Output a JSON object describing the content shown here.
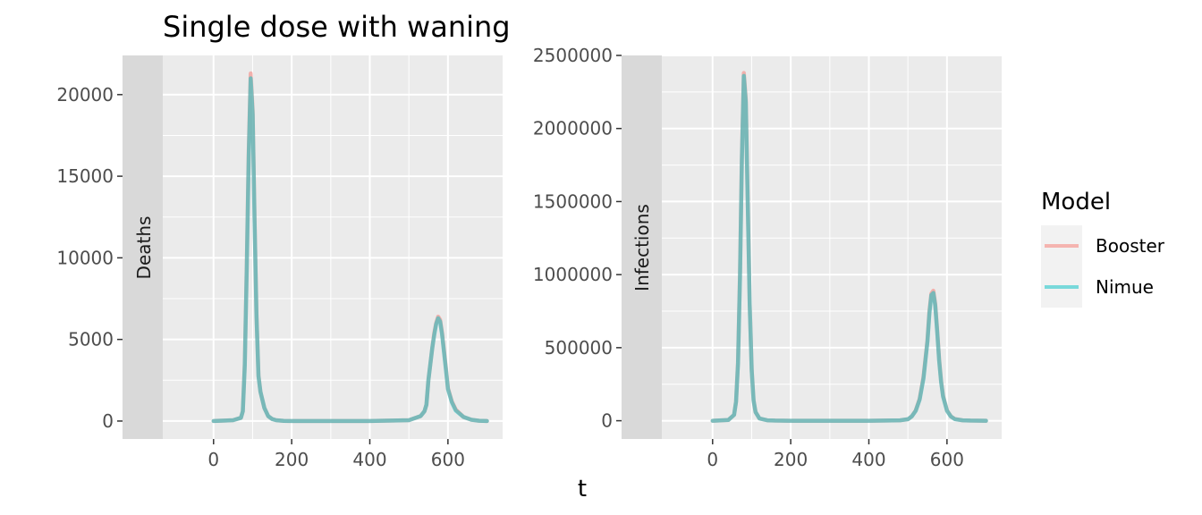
{
  "title": "Single dose with waning",
  "xlabel": "t",
  "legend": {
    "title": "Model",
    "placement": "right",
    "items": [
      {
        "label": "Booster",
        "color": "#F8766D"
      },
      {
        "label": "Nimue",
        "color": "#00BFC4"
      }
    ]
  },
  "chart_data": [
    {
      "type": "line",
      "panel": "Deaths",
      "strip_label": "Deaths",
      "xlim": [
        -130,
        740
      ],
      "ylim": [
        -1100,
        22400
      ],
      "x_ticks": [
        0,
        200,
        400,
        600
      ],
      "y_ticks": [
        0,
        5000,
        10000,
        15000,
        20000
      ],
      "x_tick_labels": [
        "0",
        "200",
        "400",
        "600"
      ],
      "y_tick_labels": [
        "0",
        "5000",
        "10000",
        "15000",
        "20000"
      ],
      "series": [
        {
          "name": "Booster",
          "color": "#F8766D",
          "x": [
            0,
            50,
            70,
            75,
            80,
            85,
            90,
            95,
            100,
            105,
            110,
            115,
            120,
            130,
            140,
            150,
            160,
            180,
            200,
            300,
            400,
            500,
            530,
            540,
            545,
            550,
            555,
            560,
            565,
            570,
            575,
            580,
            585,
            590,
            595,
            600,
            610,
            620,
            640,
            660,
            680,
            700
          ],
          "y": [
            0,
            50,
            200,
            600,
            3500,
            9500,
            16500,
            21300,
            19000,
            12500,
            6500,
            2800,
            1800,
            800,
            300,
            120,
            50,
            10,
            0,
            0,
            0,
            50,
            300,
            600,
            1000,
            2500,
            3500,
            4500,
            5400,
            6000,
            6400,
            6200,
            5400,
            4300,
            3200,
            2000,
            1200,
            700,
            250,
            80,
            20,
            0
          ]
        },
        {
          "name": "Nimue",
          "color": "#00BFC4",
          "x": [
            0,
            50,
            70,
            75,
            80,
            85,
            90,
            95,
            100,
            105,
            110,
            115,
            120,
            130,
            140,
            150,
            160,
            180,
            200,
            300,
            400,
            500,
            530,
            540,
            545,
            550,
            555,
            560,
            565,
            570,
            575,
            580,
            585,
            590,
            595,
            600,
            610,
            620,
            640,
            660,
            680,
            700
          ],
          "y": [
            0,
            50,
            200,
            600,
            3400,
            9300,
            16200,
            21000,
            18800,
            12300,
            6400,
            2750,
            1800,
            800,
            300,
            120,
            50,
            10,
            0,
            0,
            0,
            50,
            300,
            600,
            1000,
            2500,
            3500,
            4500,
            5300,
            5950,
            6300,
            6100,
            5300,
            4200,
            3100,
            1950,
            1150,
            650,
            250,
            80,
            20,
            0
          ]
        }
      ]
    },
    {
      "type": "line",
      "panel": "Infections",
      "strip_label": "Infections",
      "xlim": [
        -130,
        740
      ],
      "ylim": [
        -125000,
        2500000
      ],
      "x_ticks": [
        0,
        200,
        400,
        600
      ],
      "y_ticks": [
        0,
        500000,
        1000000,
        1500000,
        2000000,
        2500000
      ],
      "x_tick_labels": [
        "0",
        "200",
        "400",
        "600"
      ],
      "y_tick_labels": [
        "0",
        "500000",
        "1000000",
        "1500000",
        "2000000",
        "2500000"
      ],
      "series": [
        {
          "name": "Booster",
          "color": "#F8766D",
          "x": [
            0,
            40,
            55,
            60,
            65,
            70,
            75,
            80,
            85,
            90,
            95,
            100,
            105,
            110,
            120,
            140,
            160,
            200,
            300,
            400,
            480,
            500,
            510,
            520,
            530,
            540,
            550,
            555,
            560,
            565,
            570,
            575,
            580,
            585,
            590,
            600,
            610,
            620,
            640,
            660,
            700
          ],
          "y": [
            0,
            5000,
            40000,
            130000,
            400000,
            1000000,
            1800000,
            2380000,
            2200000,
            1500000,
            800000,
            350000,
            140000,
            60000,
            15000,
            3000,
            1000,
            0,
            0,
            0,
            3000,
            10000,
            30000,
            70000,
            150000,
            300000,
            550000,
            750000,
            870000,
            890000,
            800000,
            620000,
            420000,
            270000,
            170000,
            70000,
            30000,
            12000,
            3000,
            800,
            0
          ]
        },
        {
          "name": "Nimue",
          "color": "#00BFC4",
          "x": [
            0,
            40,
            55,
            60,
            65,
            70,
            75,
            80,
            85,
            90,
            95,
            100,
            105,
            110,
            120,
            140,
            160,
            200,
            300,
            400,
            480,
            500,
            510,
            520,
            530,
            540,
            550,
            555,
            560,
            565,
            570,
            575,
            580,
            585,
            590,
            600,
            610,
            620,
            640,
            660,
            700
          ],
          "y": [
            0,
            5000,
            40000,
            130000,
            390000,
            980000,
            1780000,
            2360000,
            2180000,
            1480000,
            790000,
            345000,
            138000,
            59000,
            15000,
            3000,
            1000,
            0,
            0,
            0,
            3000,
            10000,
            30000,
            68000,
            145000,
            290000,
            540000,
            735000,
            860000,
            875000,
            790000,
            610000,
            410000,
            265000,
            165000,
            68000,
            29000,
            11000,
            3000,
            800,
            0
          ]
        }
      ]
    }
  ]
}
